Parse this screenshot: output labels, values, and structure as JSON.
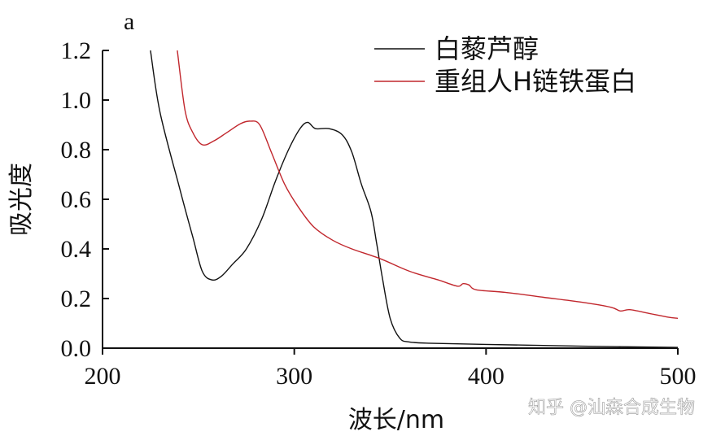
{
  "chart_data": {
    "type": "line",
    "panel_label": "a",
    "xlabel": "波长/nm",
    "ylabel": "吸光度",
    "xlim": [
      200,
      500
    ],
    "ylim": [
      0,
      1.2
    ],
    "x_ticks": [
      200,
      300,
      400,
      500
    ],
    "x_tick_labels": [
      "200",
      "300",
      "400",
      "500"
    ],
    "y_ticks": [
      0.0,
      0.2,
      0.4,
      0.6,
      0.8,
      1.0,
      1.2
    ],
    "y_tick_labels": [
      "0.0",
      "0.2",
      "0.4",
      "0.6",
      "0.8",
      "1.0",
      "1.2"
    ],
    "legend_position": "top-right",
    "series": [
      {
        "name": "白藜芦醇",
        "color": "#111111",
        "points": [
          [
            225,
            1.2
          ],
          [
            230,
            0.95
          ],
          [
            240,
            0.65
          ],
          [
            247,
            0.45
          ],
          [
            252,
            0.31
          ],
          [
            257,
            0.275
          ],
          [
            262,
            0.29
          ],
          [
            268,
            0.34
          ],
          [
            275,
            0.4
          ],
          [
            283,
            0.52
          ],
          [
            290,
            0.67
          ],
          [
            297,
            0.8
          ],
          [
            303,
            0.885
          ],
          [
            307,
            0.91
          ],
          [
            311,
            0.885
          ],
          [
            318,
            0.885
          ],
          [
            325,
            0.86
          ],
          [
            330,
            0.79
          ],
          [
            335,
            0.66
          ],
          [
            340,
            0.55
          ],
          [
            343,
            0.42
          ],
          [
            346,
            0.28
          ],
          [
            350,
            0.12
          ],
          [
            355,
            0.04
          ],
          [
            360,
            0.025
          ],
          [
            370,
            0.02
          ],
          [
            400,
            0.015
          ],
          [
            450,
            0.008
          ],
          [
            500,
            0.003
          ]
        ]
      },
      {
        "name": "重组人H链铁蛋白",
        "color": "#c1272d",
        "points": [
          [
            239,
            1.2
          ],
          [
            243,
            0.96
          ],
          [
            247,
            0.87
          ],
          [
            252,
            0.82
          ],
          [
            258,
            0.835
          ],
          [
            265,
            0.87
          ],
          [
            272,
            0.905
          ],
          [
            277,
            0.915
          ],
          [
            282,
            0.9
          ],
          [
            288,
            0.79
          ],
          [
            295,
            0.66
          ],
          [
            302,
            0.57
          ],
          [
            310,
            0.49
          ],
          [
            320,
            0.435
          ],
          [
            330,
            0.4
          ],
          [
            345,
            0.36
          ],
          [
            360,
            0.31
          ],
          [
            375,
            0.275
          ],
          [
            385,
            0.25
          ],
          [
            388,
            0.26
          ],
          [
            391,
            0.255
          ],
          [
            395,
            0.235
          ],
          [
            410,
            0.225
          ],
          [
            430,
            0.205
          ],
          [
            450,
            0.185
          ],
          [
            465,
            0.165
          ],
          [
            470,
            0.15
          ],
          [
            475,
            0.155
          ],
          [
            485,
            0.14
          ],
          [
            495,
            0.125
          ],
          [
            500,
            0.12
          ]
        ]
      }
    ]
  },
  "watermark": "知乎 @汕森合成生物"
}
